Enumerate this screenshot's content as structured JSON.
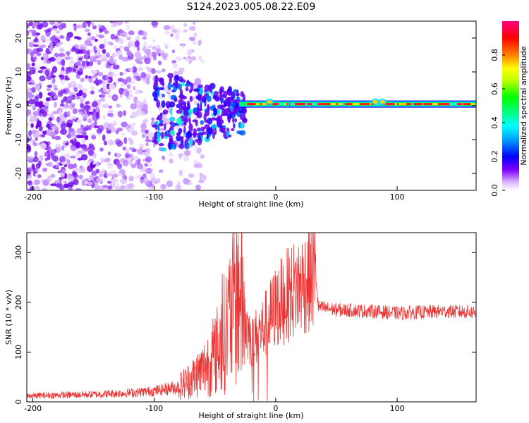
{
  "title": "S124.2023.005.08.22.E09",
  "chart_data": [
    {
      "type": "heatmap",
      "xlabel": "Height of straight line (km)",
      "ylabel": "Frequency (Hz)",
      "xlim": [
        -205,
        165
      ],
      "ylim": [
        -25,
        25
      ],
      "xticks": [
        -200,
        -100,
        0,
        100
      ],
      "yticks": [
        -20,
        -10,
        0,
        10,
        20
      ],
      "colorbar": {
        "label": "Normalized spectral amplitude",
        "ticks": [
          0.0,
          0.2,
          0.4,
          0.6,
          0.8
        ],
        "range": [
          0,
          1
        ],
        "colors": [
          "#ffffff",
          "#c080ff",
          "#6000ff",
          "#0000ff",
          "#00a0ff",
          "#00ffff",
          "#00ff80",
          "#00ff00",
          "#c0ff00",
          "#ffff00",
          "#ff8000",
          "#ff0000",
          "#ff0080"
        ]
      },
      "features": {
        "noise_region_x": [
          -205,
          -80
        ],
        "transition_region_x": [
          -90,
          -30
        ],
        "carrier_line_x": [
          -30,
          165
        ],
        "carrier_frequency_hz": 0.5
      }
    },
    {
      "type": "line",
      "xlabel": "Height of straight line (km)",
      "ylabel": "SNR (10 * v/v)",
      "xlim": [
        -205,
        165
      ],
      "ylim": [
        0,
        340
      ],
      "xticks": [
        -200,
        -100,
        0,
        100
      ],
      "yticks": [
        0,
        100,
        200,
        300
      ],
      "color": "#ee3333",
      "envelope": {
        "x": [
          -205,
          -150,
          -120,
          -100,
          -80,
          -70,
          -60,
          -50,
          -40,
          -35,
          -30,
          -25,
          -20,
          -10,
          0,
          10,
          20,
          30,
          33,
          35,
          50,
          80,
          100,
          120,
          140,
          165
        ],
        "y": [
          12,
          15,
          18,
          22,
          30,
          45,
          65,
          95,
          150,
          200,
          230,
          160,
          120,
          150,
          190,
          215,
          235,
          250,
          255,
          190,
          185,
          182,
          178,
          180,
          182,
          180
        ]
      }
    }
  ]
}
